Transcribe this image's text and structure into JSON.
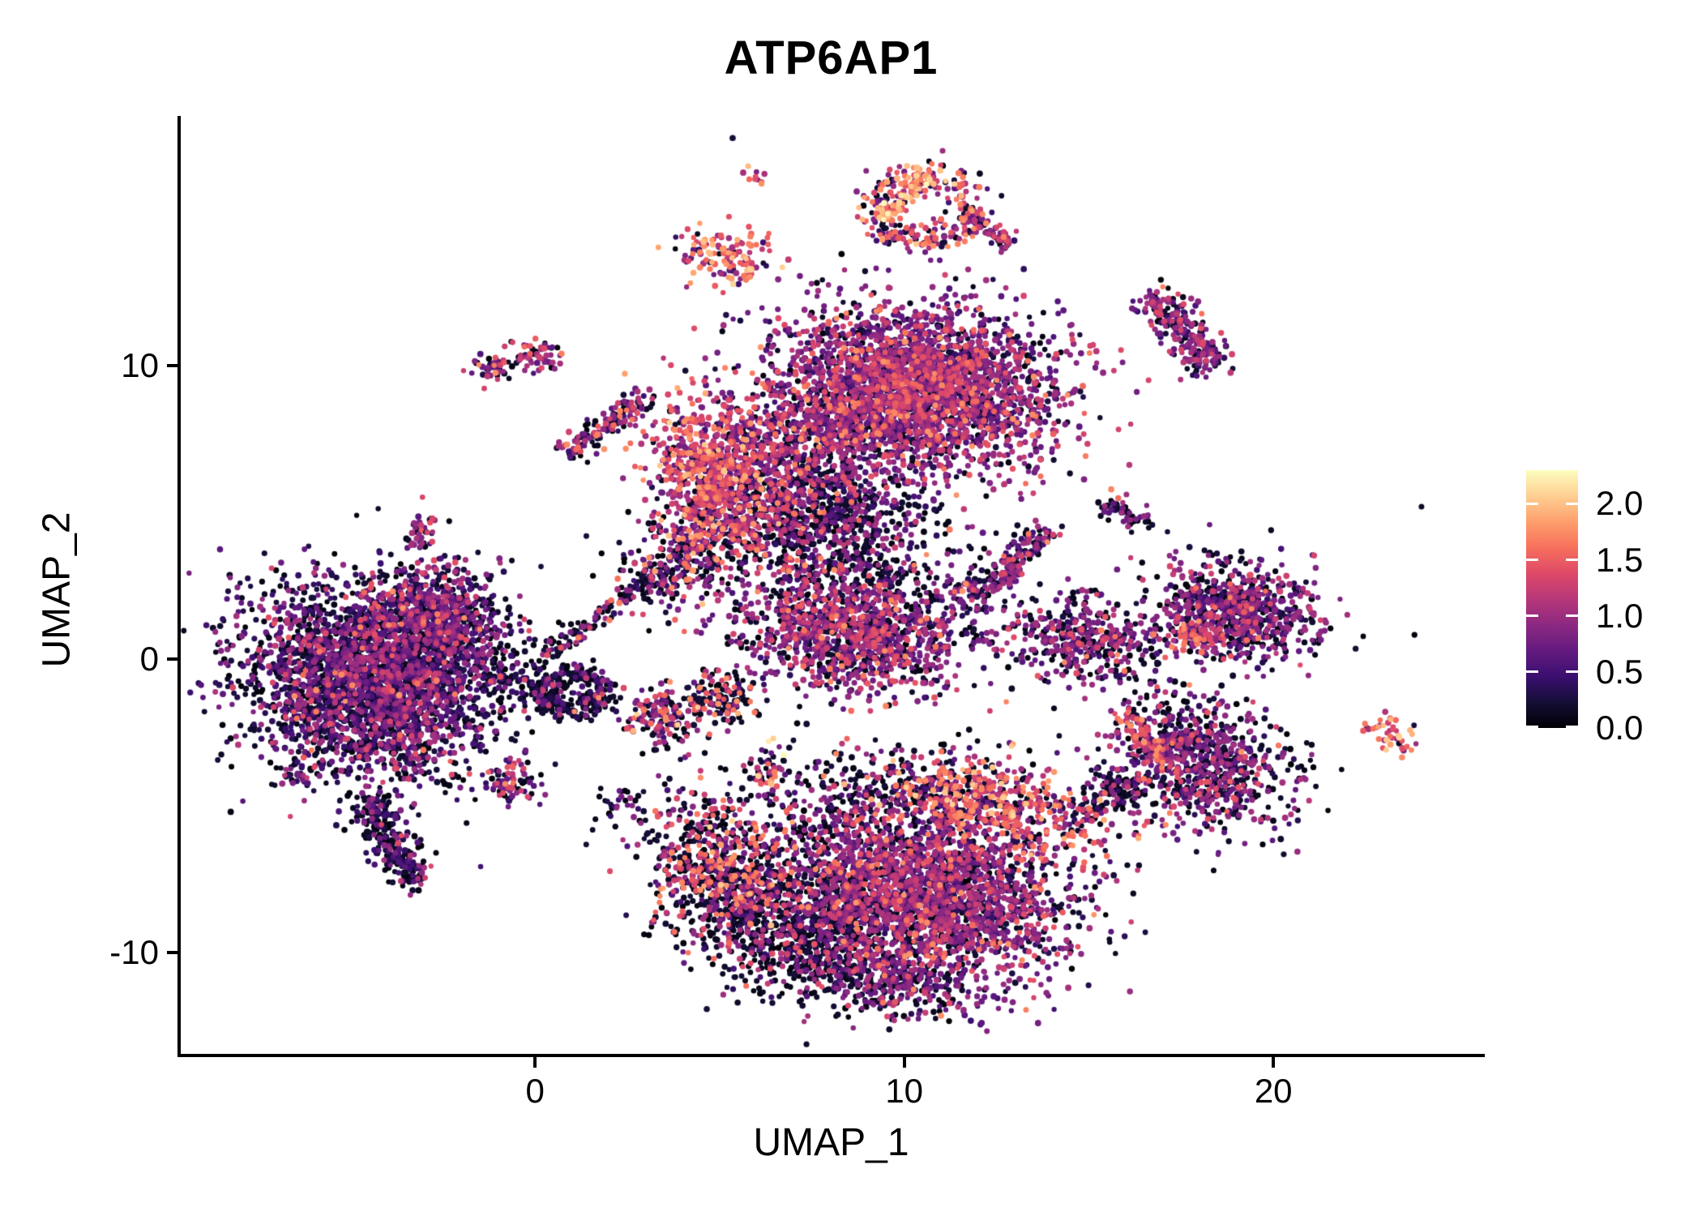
{
  "chart_data": {
    "type": "scatter",
    "title": "ATP6AP1",
    "xlabel": "UMAP_1",
    "ylabel": "UMAP_2",
    "x_ticks": [
      "0",
      "10",
      "20"
    ],
    "x_tick_values": [
      0,
      10,
      20
    ],
    "y_ticks": [
      "-10",
      "0",
      "10"
    ],
    "y_tick_values": [
      -10,
      0,
      10
    ],
    "x_range": [
      -9.62,
      25.66
    ],
    "y_range": [
      -13.52,
      18.47
    ],
    "grid": false,
    "background": "#ffffff",
    "point_radius_px": 3.5,
    "colorbar": {
      "position": "right",
      "tick_labels": [
        "2.0",
        "1.5",
        "1.0",
        "0.5",
        "0.0"
      ],
      "tick_values": [
        2.0,
        1.5,
        1.0,
        0.5,
        0.0
      ],
      "domain": [
        0,
        2.3
      ],
      "colormap": "magma",
      "colormap_stops": [
        "#000004",
        "#140e36",
        "#3b0f70",
        "#641a80",
        "#8c2981",
        "#b73779",
        "#de4968",
        "#f7705c",
        "#fe9f6d",
        "#fecf92",
        "#fcfdbf"
      ]
    },
    "value_bands": [
      [
        0,
        0.25
      ],
      [
        0.25,
        0.6
      ],
      [
        0.6,
        1.05
      ],
      [
        1.05,
        1.45
      ],
      [
        1.45,
        1.8
      ],
      [
        1.8,
        2.1
      ],
      [
        2.1,
        2.3
      ]
    ],
    "clusters": [
      {
        "name": "left-main",
        "shape": "gauss",
        "n": 3100,
        "c": [
          -4.4,
          -0.7
        ],
        "s": [
          1.75,
          1.6
        ],
        "rot": -25,
        "w": [
          0.42,
          0.28,
          0.22,
          0.07,
          0.01,
          0,
          0
        ]
      },
      {
        "name": "left-ne-lobe",
        "shape": "gauss",
        "n": 650,
        "c": [
          -2.7,
          1.3
        ],
        "s": [
          1.05,
          0.8
        ],
        "rot": -20,
        "w": [
          0.3,
          0.26,
          0.3,
          0.12,
          0.02,
          0,
          0
        ]
      },
      {
        "name": "left-tail",
        "shape": "line",
        "n": 260,
        "from": [
          -4.5,
          -4.8
        ],
        "to": [
          -3.2,
          -7.7
        ],
        "width": 0.3,
        "w": [
          0.58,
          0.22,
          0.15,
          0.05,
          0,
          0,
          0
        ]
      },
      {
        "name": "left-sw-blip",
        "shape": "gauss",
        "n": 30,
        "c": [
          -6.6,
          -4.0
        ],
        "s": [
          0.25,
          0.2
        ],
        "rot": 0,
        "w": [
          0.4,
          0.25,
          0.3,
          0.05,
          0,
          0,
          0
        ]
      },
      {
        "name": "hook",
        "shape": "ring",
        "n": 300,
        "c": [
          0.95,
          -1.15
        ],
        "r": [
          0.8,
          0.65
        ],
        "thick": 0.3,
        "w": [
          0.72,
          0.12,
          0.11,
          0.04,
          0.01,
          0,
          0
        ]
      },
      {
        "name": "se-blob",
        "shape": "gauss",
        "n": 70,
        "c": [
          -0.6,
          -4.2
        ],
        "s": [
          0.45,
          0.3
        ],
        "rot": 10,
        "w": [
          0.4,
          0.1,
          0.28,
          0.17,
          0.05,
          0,
          0
        ]
      },
      {
        "name": "bridge-dust",
        "shape": "line",
        "n": 50,
        "from": [
          -1.3,
          -0.9
        ],
        "to": [
          0.3,
          -0.4
        ],
        "width": 0.3,
        "w": [
          0.8,
          0.1,
          0.1,
          0,
          0,
          0,
          0
        ]
      },
      {
        "name": "tiny-a",
        "shape": "gauss",
        "n": 45,
        "c": [
          -1.15,
          9.9
        ],
        "s": [
          0.3,
          0.22
        ],
        "rot": 0,
        "w": [
          0.2,
          0.15,
          0.4,
          0.18,
          0.07,
          0,
          0
        ]
      },
      {
        "name": "tiny-b",
        "shape": "gauss",
        "n": 55,
        "c": [
          0.05,
          10.35
        ],
        "s": [
          0.35,
          0.25
        ],
        "rot": 0,
        "w": [
          0.22,
          0.1,
          0.38,
          0.25,
          0.05,
          0,
          0
        ]
      },
      {
        "name": "s-curve",
        "shape": "line",
        "n": 140,
        "from": [
          0.8,
          6.9
        ],
        "to": [
          2.9,
          8.9
        ],
        "width": 0.25,
        "w": [
          0.32,
          0.1,
          0.3,
          0.2,
          0.08,
          0,
          0
        ]
      },
      {
        "name": "small-vert",
        "shape": "gauss",
        "n": 40,
        "c": [
          -3.1,
          4.3
        ],
        "s": [
          0.2,
          0.45
        ],
        "rot": 0,
        "w": [
          0.35,
          0.1,
          0.3,
          0.2,
          0.05,
          0,
          0
        ]
      },
      {
        "name": "top-dots",
        "shape": "gauss",
        "n": 10,
        "c": [
          5.9,
          16.4
        ],
        "s": [
          0.18,
          0.18
        ],
        "rot": 0,
        "w": [
          0,
          0,
          0.3,
          0.3,
          0.3,
          0.1,
          0
        ]
      },
      {
        "name": "high-blob",
        "shape": "gauss",
        "n": 130,
        "c": [
          5.2,
          13.7
        ],
        "s": [
          0.75,
          0.5
        ],
        "rot": -15,
        "w": [
          0.07,
          0.04,
          0.22,
          0.26,
          0.26,
          0.15,
          0
        ]
      },
      {
        "name": "arc-ring",
        "shape": "ring",
        "n": 250,
        "c": [
          10.5,
          15.4
        ],
        "r": [
          1.35,
          1.15
        ],
        "thick": 0.22,
        "w": [
          0.22,
          0.06,
          0.26,
          0.2,
          0.2,
          0.06,
          0
        ]
      },
      {
        "name": "arc-top-edge",
        "shape": "line",
        "n": 90,
        "from": [
          9.3,
          14.9
        ],
        "to": [
          10.6,
          16.6
        ],
        "width": 0.2,
        "w": [
          0.02,
          0,
          0.08,
          0.2,
          0.45,
          0.22,
          0.03
        ]
      },
      {
        "name": "arc-tail",
        "shape": "line",
        "n": 70,
        "from": [
          11.7,
          15.2
        ],
        "to": [
          12.8,
          14.1
        ],
        "width": 0.22,
        "w": [
          0.15,
          0.1,
          0.45,
          0.25,
          0.05,
          0,
          0
        ]
      },
      {
        "name": "ctop-main",
        "shape": "gauss",
        "n": 2900,
        "c": [
          10.4,
          9.2
        ],
        "s": [
          1.85,
          1.4
        ],
        "rot": -10,
        "w": [
          0.17,
          0.12,
          0.46,
          0.2,
          0.05,
          0,
          0
        ]
      },
      {
        "name": "ctop-pink-lobe",
        "shape": "gauss",
        "n": 800,
        "c": [
          4.9,
          6.2
        ],
        "s": [
          0.85,
          1.35
        ],
        "rot": 8,
        "w": [
          0.1,
          0.06,
          0.28,
          0.35,
          0.18,
          0.03,
          0
        ]
      },
      {
        "name": "ctop-bridge",
        "shape": "gauss",
        "n": 600,
        "c": [
          7.3,
          7.5
        ],
        "s": [
          1.2,
          1.1
        ],
        "rot": 0,
        "w": [
          0.28,
          0.14,
          0.35,
          0.18,
          0.05,
          0,
          0
        ]
      },
      {
        "name": "ctop-darkband",
        "shape": "gauss",
        "n": 680,
        "c": [
          7.2,
          4.9
        ],
        "s": [
          1.5,
          0.9
        ],
        "rot": 5,
        "w": [
          0.6,
          0.12,
          0.17,
          0.08,
          0.03,
          0,
          0
        ]
      },
      {
        "name": "below-dust",
        "shape": "gauss",
        "n": 330,
        "c": [
          8.8,
          3.3
        ],
        "s": [
          1.6,
          1.1
        ],
        "rot": 0,
        "w": [
          0.56,
          0.14,
          0.22,
          0.06,
          0.02,
          0,
          0
        ]
      },
      {
        "name": "neck",
        "shape": "gauss",
        "n": 220,
        "c": [
          4.0,
          3.4
        ],
        "s": [
          0.95,
          0.75
        ],
        "rot": 45,
        "w": [
          0.4,
          0.1,
          0.2,
          0.18,
          0.1,
          0.02,
          0
        ]
      },
      {
        "name": "filament",
        "shape": "line",
        "n": 170,
        "from": [
          0.3,
          0.1
        ],
        "to": [
          4.2,
          3.6
        ],
        "width": 0.18,
        "w": [
          0.6,
          0.15,
          0.17,
          0.06,
          0.02,
          0,
          0
        ]
      },
      {
        "name": "central",
        "shape": "gauss",
        "n": 1250,
        "c": [
          8.6,
          0.9
        ],
        "s": [
          1.55,
          0.95
        ],
        "rot": -8,
        "w": [
          0.28,
          0.12,
          0.38,
          0.18,
          0.04,
          0,
          0
        ]
      },
      {
        "name": "squiggle-a",
        "shape": "line",
        "n": 110,
        "from": [
          11.5,
          2.0
        ],
        "to": [
          13.0,
          3.1
        ],
        "width": 0.28,
        "w": [
          0.3,
          0.15,
          0.4,
          0.12,
          0.03,
          0,
          0
        ]
      },
      {
        "name": "squiggle-b",
        "shape": "line",
        "n": 95,
        "from": [
          12.7,
          3.1
        ],
        "to": [
          13.9,
          4.4
        ],
        "width": 0.25,
        "w": [
          0.3,
          0.15,
          0.4,
          0.12,
          0.03,
          0,
          0
        ]
      },
      {
        "name": "mid-tiny-a",
        "shape": "gauss",
        "n": 30,
        "c": [
          15.6,
          5.2
        ],
        "s": [
          0.3,
          0.2
        ],
        "rot": 0,
        "w": [
          0.45,
          0.1,
          0.4,
          0,
          0.05,
          0,
          0
        ]
      },
      {
        "name": "mid-tiny-b",
        "shape": "gauss",
        "n": 25,
        "c": [
          16.3,
          4.8
        ],
        "s": [
          0.25,
          0.18
        ],
        "rot": 0,
        "w": [
          0.5,
          0.1,
          0.4,
          0,
          0,
          0,
          0
        ]
      },
      {
        "name": "rtop-elong",
        "shape": "line",
        "n": 250,
        "from": [
          16.8,
          12.4
        ],
        "to": [
          18.4,
          10.0
        ],
        "width": 0.38,
        "w": [
          0.28,
          0.1,
          0.4,
          0.2,
          0.02,
          0,
          0
        ]
      },
      {
        "name": "r1",
        "shape": "gauss",
        "n": 780,
        "c": [
          19.0,
          1.6
        ],
        "s": [
          1.05,
          0.8
        ],
        "rot": -15,
        "w": [
          0.38,
          0.12,
          0.38,
          0.1,
          0.02,
          0,
          0
        ]
      },
      {
        "name": "r1-pink",
        "shape": "gauss",
        "n": 50,
        "c": [
          17.8,
          0.8
        ],
        "s": [
          0.35,
          0.3
        ],
        "rot": 0,
        "w": [
          0.1,
          0,
          0.15,
          0.4,
          0.35,
          0,
          0
        ]
      },
      {
        "name": "r2",
        "shape": "gauss",
        "n": 430,
        "c": [
          14.9,
          0.6
        ],
        "s": [
          1.05,
          0.72
        ],
        "rot": -20,
        "w": [
          0.34,
          0.12,
          0.4,
          0.1,
          0.03,
          0.01,
          0
        ]
      },
      {
        "name": "r5",
        "shape": "gauss",
        "n": 850,
        "c": [
          17.9,
          -3.5
        ],
        "s": [
          1.3,
          1.0
        ],
        "rot": -35,
        "w": [
          0.44,
          0.12,
          0.33,
          0.09,
          0.02,
          0,
          0
        ]
      },
      {
        "name": "r5-pink-edge",
        "shape": "line",
        "n": 85,
        "from": [
          16.0,
          -1.9
        ],
        "to": [
          17.0,
          -3.6
        ],
        "width": 0.25,
        "w": [
          0.15,
          0.05,
          0.15,
          0.4,
          0.25,
          0,
          0
        ]
      },
      {
        "name": "r5-bridge",
        "shape": "line",
        "n": 110,
        "from": [
          14.8,
          -5.3
        ],
        "to": [
          16.4,
          -4.1
        ],
        "width": 0.35,
        "w": [
          0.62,
          0.1,
          0.18,
          0.08,
          0.02,
          0,
          0
        ]
      },
      {
        "name": "bottom-main",
        "shape": "gauss",
        "n": 2750,
        "c": [
          10.5,
          -7.9
        ],
        "s": [
          2.05,
          1.5
        ],
        "rot": -14,
        "w": [
          0.27,
          0.1,
          0.43,
          0.16,
          0.04,
          0,
          0
        ]
      },
      {
        "name": "bottom-pink-streak",
        "shape": "gauss",
        "n": 560,
        "c": [
          12.3,
          -4.8
        ],
        "s": [
          1.65,
          0.72
        ],
        "rot": -18,
        "w": [
          0.24,
          0.05,
          0.15,
          0.26,
          0.25,
          0.05,
          0
        ]
      },
      {
        "name": "bottom-left-wing",
        "shape": "gauss",
        "n": 720,
        "c": [
          5.0,
          -7.2
        ],
        "s": [
          1.0,
          1.3
        ],
        "rot": 15,
        "w": [
          0.5,
          0.07,
          0.13,
          0.15,
          0.13,
          0.02,
          0
        ]
      },
      {
        "name": "bottom-darkband",
        "shape": "gauss",
        "n": 780,
        "c": [
          7.3,
          -9.3
        ],
        "s": [
          1.45,
          1.15
        ],
        "rot": -25,
        "w": [
          0.7,
          0.1,
          0.14,
          0.05,
          0.01,
          0,
          0
        ]
      },
      {
        "name": "bottom-tip",
        "shape": "gauss",
        "n": 260,
        "c": [
          9.7,
          -11.0
        ],
        "s": [
          1.0,
          0.55
        ],
        "rot": -10,
        "w": [
          0.4,
          0.12,
          0.38,
          0.09,
          0.01,
          0,
          0
        ]
      },
      {
        "name": "mid-a",
        "shape": "gauss",
        "n": 150,
        "c": [
          3.4,
          -1.9
        ],
        "s": [
          0.55,
          0.5
        ],
        "rot": 0,
        "w": [
          0.33,
          0.1,
          0.3,
          0.18,
          0.07,
          0.02,
          0
        ]
      },
      {
        "name": "mid-b",
        "shape": "gauss",
        "n": 130,
        "c": [
          5.1,
          -1.3
        ],
        "s": [
          0.5,
          0.45
        ],
        "rot": 0,
        "w": [
          0.58,
          0.05,
          0.13,
          0.12,
          0.1,
          0.02,
          0
        ]
      },
      {
        "name": "tiny-colorful",
        "shape": "gauss",
        "n": 50,
        "c": [
          6.3,
          -3.9
        ],
        "s": [
          0.25,
          0.5
        ],
        "rot": 0,
        "w": [
          0.28,
          0.02,
          0.25,
          0.2,
          0.15,
          0.07,
          0.03
        ]
      },
      {
        "name": "mid-dust",
        "shape": "gauss",
        "n": 200,
        "c": [
          9.3,
          -4.6
        ],
        "s": [
          1.6,
          0.85
        ],
        "rot": 0,
        "w": [
          0.8,
          0.1,
          0.08,
          0.02,
          0,
          0,
          0
        ]
      },
      {
        "name": "tiny-se2",
        "shape": "gauss",
        "n": 25,
        "c": [
          2.4,
          -4.8
        ],
        "s": [
          0.3,
          0.22
        ],
        "rot": 0,
        "w": [
          0.55,
          0.15,
          0.3,
          0,
          0,
          0,
          0
        ]
      },
      {
        "name": "far-right",
        "shape": "line",
        "n": 45,
        "from": [
          22.7,
          -2.1
        ],
        "to": [
          23.7,
          -3.1
        ],
        "width": 0.22,
        "w": [
          0.05,
          0,
          0.15,
          0.25,
          0.3,
          0.25,
          0
        ]
      },
      {
        "name": "noise",
        "shape": "gauss",
        "n": 40,
        "c": [
          8,
          2
        ],
        "s": [
          8,
          7
        ],
        "rot": 0,
        "w": [
          0.75,
          0.1,
          0.15,
          0,
          0,
          0,
          0
        ]
      }
    ]
  }
}
